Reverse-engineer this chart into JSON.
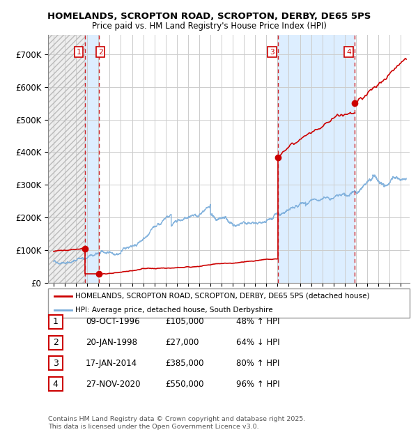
{
  "title": "HOMELANDS, SCROPTON ROAD, SCROPTON, DERBY, DE65 5PS",
  "subtitle": "Price paid vs. HM Land Registry's House Price Index (HPI)",
  "xlim_start": 1993.5,
  "xlim_end": 2025.8,
  "ylim": [
    0,
    760000
  ],
  "yticks": [
    0,
    100000,
    200000,
    300000,
    400000,
    500000,
    600000,
    700000
  ],
  "ytick_labels": [
    "£0",
    "£100K",
    "£200K",
    "£300K",
    "£400K",
    "£500K",
    "£600K",
    "£700K"
  ],
  "xticks": [
    1994,
    1995,
    1996,
    1997,
    1998,
    1999,
    2000,
    2001,
    2002,
    2003,
    2004,
    2005,
    2006,
    2007,
    2008,
    2009,
    2010,
    2011,
    2012,
    2013,
    2014,
    2015,
    2016,
    2017,
    2018,
    2019,
    2020,
    2021,
    2022,
    2023,
    2024,
    2025
  ],
  "background_color": "#ffffff",
  "plot_bg_color": "#ffffff",
  "grid_color": "#cccccc",
  "sale_color": "#cc0000",
  "hpi_color": "#7aaddb",
  "span_color": "#ddeeff",
  "transactions": [
    {
      "num": 1,
      "date_label": "09-OCT-1996",
      "date_x": 1996.78,
      "price": 105000,
      "pct": "48% ↑ HPI"
    },
    {
      "num": 2,
      "date_label": "20-JAN-1998",
      "date_x": 1998.05,
      "price": 27000,
      "pct": "64% ↓ HPI"
    },
    {
      "num": 3,
      "date_label": "17-JAN-2014",
      "date_x": 2014.05,
      "price": 385000,
      "pct": "80% ↑ HPI"
    },
    {
      "num": 4,
      "date_label": "27-NOV-2020",
      "date_x": 2020.91,
      "price": 550000,
      "pct": "96% ↑ HPI"
    }
  ],
  "legend_sale_label": "HOMELANDS, SCROPTON ROAD, SCROPTON, DERBY, DE65 5PS (detached house)",
  "legend_hpi_label": "HPI: Average price, detached house, South Derbyshire",
  "footer": "Contains HM Land Registry data © Crown copyright and database right 2025.\nThis data is licensed under the Open Government Licence v3.0.",
  "table_rows": [
    [
      "1",
      "09-OCT-1996",
      "£105,000",
      "48% ↑ HPI"
    ],
    [
      "2",
      "20-JAN-1998",
      "£27,000",
      "64% ↓ HPI"
    ],
    [
      "3",
      "17-JAN-2014",
      "£385,000",
      "80% ↑ HPI"
    ],
    [
      "4",
      "27-NOV-2020",
      "£550,000",
      "96% ↑ HPI"
    ]
  ]
}
